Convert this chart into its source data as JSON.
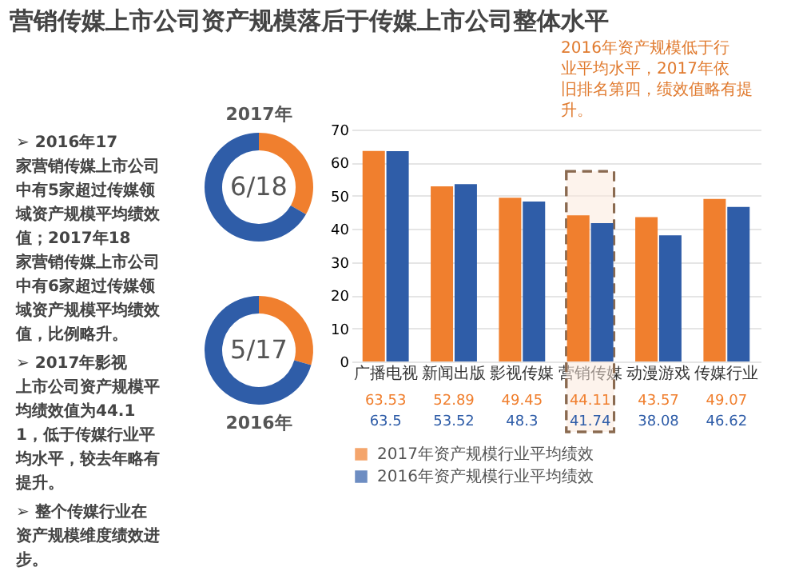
{
  "chart_data": [
    {
      "type": "other",
      "title": "营销传媒上市公司资产规模落后于传媒上市公司整体水平",
      "annotations": [
        "➢ 2016年17家营销传媒上市公司中有5家超过传媒领域资产规模平均绩效值；2017年18家营销传媒上市公司中有6家超过传媒领域资产规模平均绩效值，比例略升。",
        "➢ 2017年影视上市公司资产规模平均绩效值为44.11，低于传媒行业平均水平，较去年略有提升。",
        "➢ 整个传媒行业在资产规模维度绩效进步。"
      ]
    },
    {
      "type": "donut",
      "title": "2017年",
      "categories": [
        null,
        null
      ],
      "values": [
        33.3,
        66.7
      ],
      "colors": [
        "#f07f2e",
        "#2f5da8"
      ],
      "annotations": [
        "6/18"
      ]
    },
    {
      "type": "donut",
      "title": "2016年",
      "categories": [
        null,
        null
      ],
      "values": [
        29.4,
        70.6
      ],
      "colors": [
        "#f07f2e",
        "#2f5da8"
      ],
      "annotations": [
        "5/17"
      ]
    },
    {
      "type": "bar",
      "categories": [
        "广播电视",
        "新闻出版",
        "影视传媒",
        "营销传媒",
        "动漫游戏",
        "传媒行业"
      ],
      "series": [
        {
          "name": "2017年资产规模行业平均绩效",
          "color": "#f07f2e",
          "values": [
            63.53,
            52.89,
            49.45,
            44.11,
            43.57,
            49.07
          ]
        },
        {
          "name": "2016年资产规模行业平均绩效",
          "color": "#2f5da8",
          "values": [
            63.5,
            53.52,
            48.3,
            41.74,
            38.08,
            46.62
          ]
        }
      ],
      "ylim": [
        0,
        70
      ],
      "yticks": [
        0,
        10,
        20,
        30,
        40,
        50,
        60,
        70
      ],
      "grid": "y",
      "data_labels": true,
      "legend": "bottom",
      "bands": [
        {
          "axis": "x",
          "from": "营销传媒",
          "to": "营销传媒",
          "color": "#fbe9dc"
        }
      ],
      "annotations": [
        "2016年资产规模低于行业平均水平，2017年依旧排名第四，绩效值略有提升。"
      ]
    }
  ]
}
